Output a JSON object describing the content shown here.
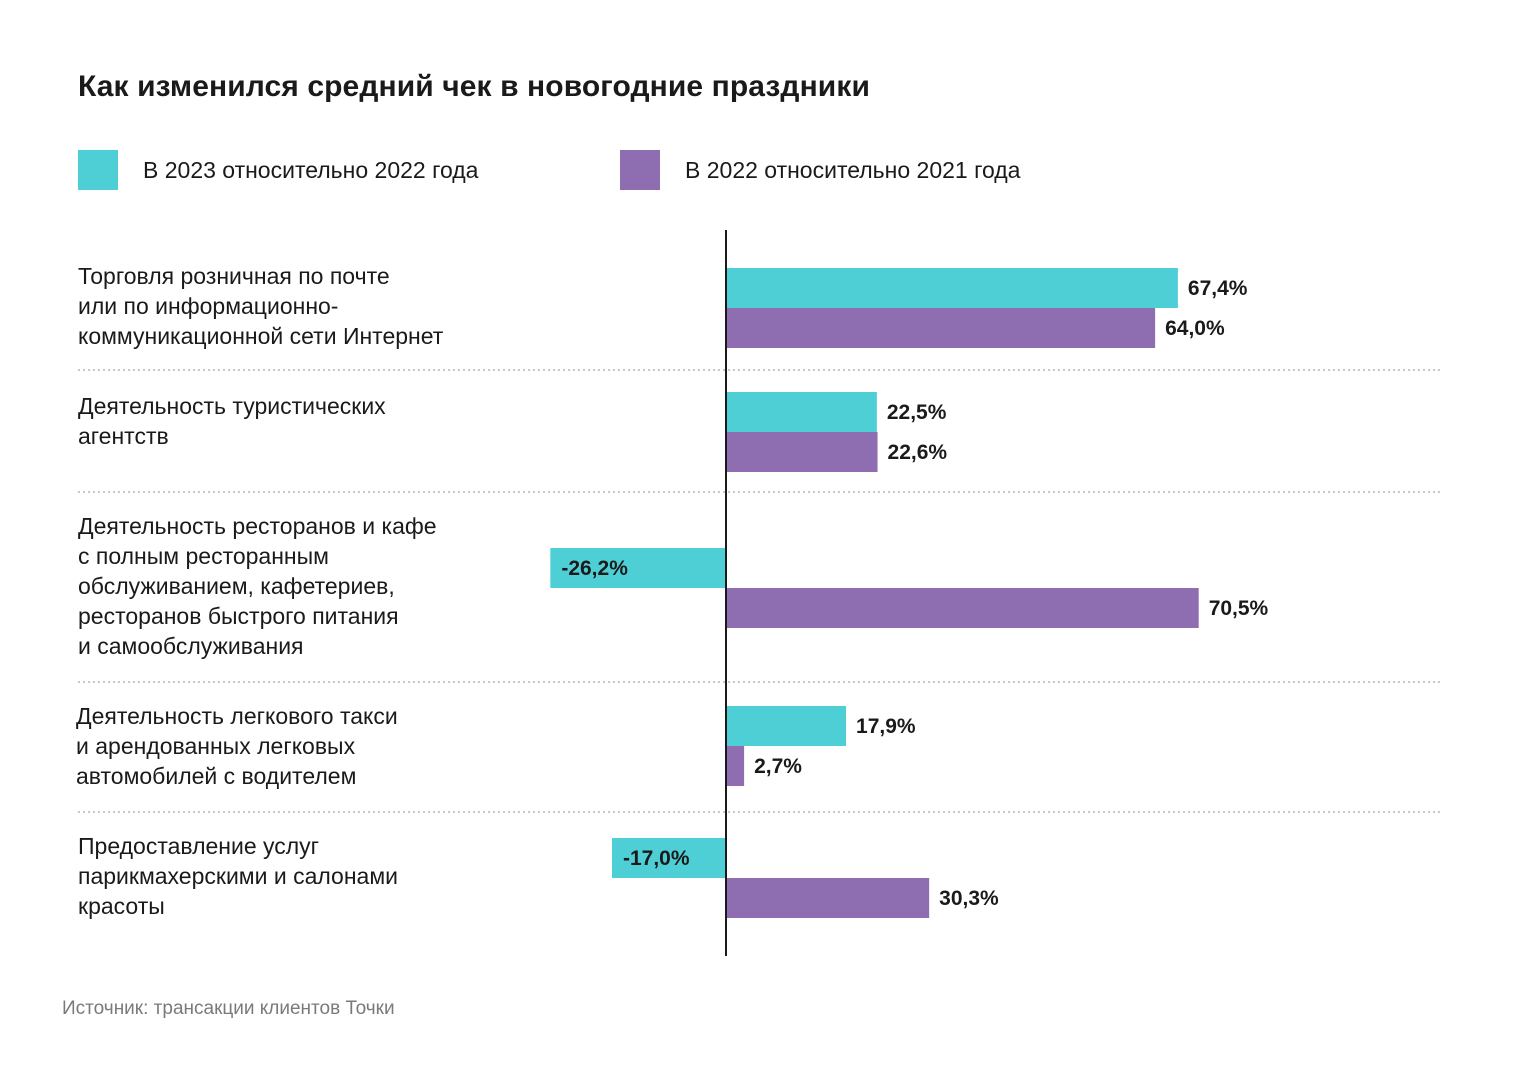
{
  "title": "Как изменился средний чек в новогодние праздники",
  "source": "Источник: трансакции клиентов Точки",
  "colors": {
    "series_2023": "#4ECFD6",
    "series_2022": "#8E6DB0",
    "axis": "#1a1a1a",
    "divider": "#b5b5b5"
  },
  "chart_data": {
    "type": "bar",
    "orientation": "horizontal",
    "title": "Как изменился средний чек в новогодние праздники",
    "categories": [
      "Торговля розничная по почте\nили по информационно-\nкоммуникационной сети Интернет",
      "Деятельность туристических\nагентств",
      "Деятельность ресторанов и кафе\nс полным ресторанным\nобслуживанием, кафетериев,\nресторанов быстрого питания\nи самообслуживания",
      "Деятельность легкового такси\nи арендованных легковых\nавтомобилей с водителем",
      "Предоставление услуг\nпарикмахерскими и салонами\nкрасоты"
    ],
    "series": [
      {
        "name": "В 2023 относительно 2022 года",
        "color": "#4ECFD6",
        "values": [
          67.4,
          22.5,
          -26.2,
          17.9,
          -17.0
        ],
        "labels": [
          "67,4%",
          "22,5%",
          "-26,2%",
          "17,9%",
          "-17,0%"
        ]
      },
      {
        "name": "В 2022 относительно 2021 года",
        "color": "#8E6DB0",
        "values": [
          64.0,
          22.6,
          70.5,
          2.7,
          30.3
        ],
        "labels": [
          "64,0%",
          "22,6%",
          "70,5%",
          "2,7%",
          "30,3%"
        ]
      }
    ],
    "unit": "%",
    "grid": false,
    "legend_position": "top-left"
  }
}
